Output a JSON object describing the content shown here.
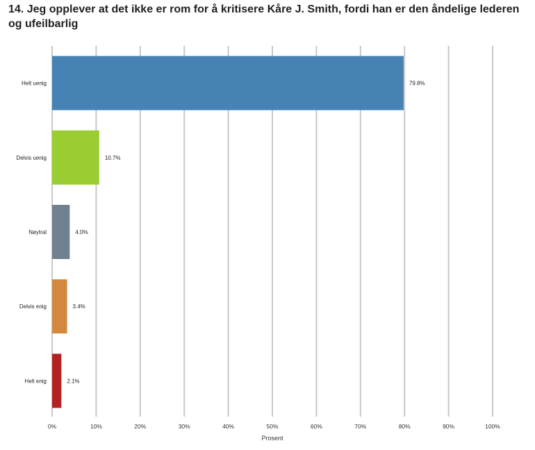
{
  "title": "14. Jeg opplever at det ikke er rom for å kritisere Kåre J. Smith, fordi han er den åndelige lederen og ufeilbarlig",
  "chart_data": {
    "type": "bar",
    "orientation": "horizontal",
    "title": "14. Jeg opplever at det ikke er rom for å kritisere Kåre J. Smith, fordi han er den åndelige lederen og ufeilbarlig",
    "categories": [
      "Helt uenig",
      "Delvis uenig",
      "Nøytral",
      "Delvis enig",
      "Helt enig"
    ],
    "values": [
      79.8,
      10.7,
      4.0,
      3.4,
      2.1
    ],
    "value_labels": [
      "79.8%",
      "10.7%",
      "4.0%",
      "3.4%",
      "2.1%"
    ],
    "colors": [
      "#4682b4",
      "#9acd32",
      "#708090",
      "#d2883e",
      "#b22222"
    ],
    "xlabel": "Prosent",
    "ylabel": "",
    "xlim": [
      0,
      100
    ],
    "xticks": [
      "0%",
      "10%",
      "20%",
      "30%",
      "40%",
      "50%",
      "60%",
      "70%",
      "80%",
      "90%",
      "100%"
    ],
    "grid": true,
    "legend": "none"
  }
}
